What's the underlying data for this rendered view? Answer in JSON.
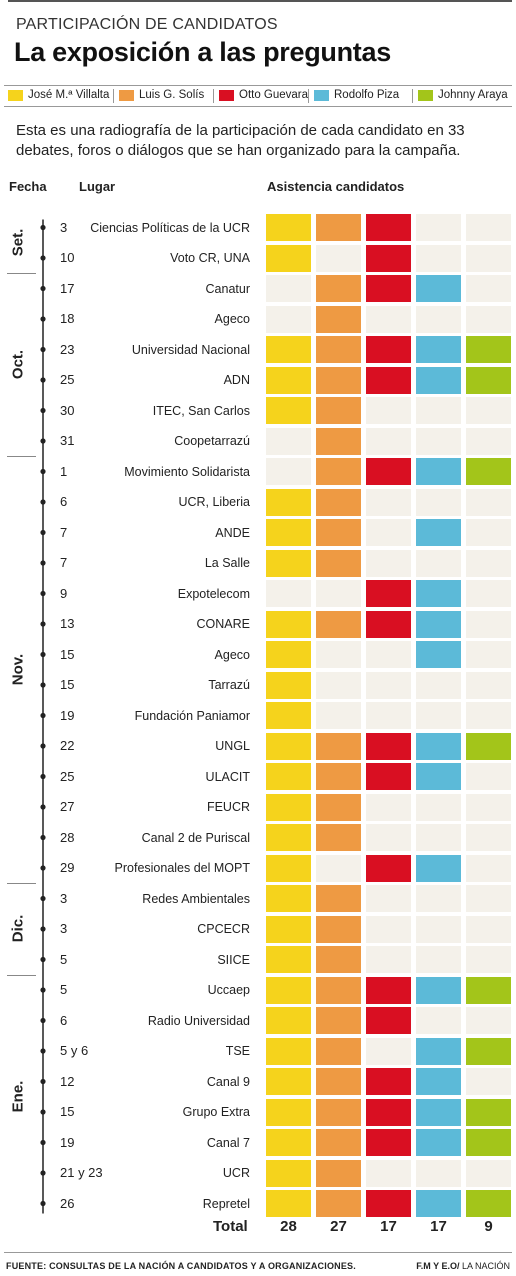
{
  "header": {
    "kicker": "PARTICIPACIÓN DE CANDIDATOS",
    "title": "La exposición a las preguntas"
  },
  "intro": "Esta es una radiografía de la participación de cada candidato en 33 debates, foros o diálogos que se han organizado para la campaña.",
  "columns": {
    "fecha": "Fecha",
    "lugar": "Lugar",
    "asistencia": "Asistencia candidatos"
  },
  "total_label": "Total",
  "footer": {
    "source_prefix": "FUENTE:",
    "source_text": "CONSULTAS DE LA NACIÓN A CANDIDATOS Y A ORGANIZACIONES.",
    "credit_bold": "F.M Y E.O/",
    "credit_rest": "LA NACIÓN"
  },
  "colors": {
    "empty": "#f4f1ea",
    "villalta": "#f5d31c",
    "solis": "#ee9a43",
    "guevara": "#d90f22",
    "piza": "#5cbad8",
    "araya": "#a3c51a"
  },
  "chart_data": {
    "type": "table",
    "title": "La exposición a las preguntas",
    "candidates": [
      {
        "name": "José M.ª Villalta",
        "color": "#f5d31c",
        "total": "28"
      },
      {
        "name": "Luis G. Solís",
        "color": "#ee9a43",
        "total": "27"
      },
      {
        "name": "Otto Guevara",
        "color": "#d90f22",
        "total": "17"
      },
      {
        "name": "Rodolfo Piza",
        "color": "#5cbad8",
        "total": "17"
      },
      {
        "name": "Johnny Araya",
        "color": "#a3c51a",
        "total": "9"
      }
    ],
    "months": [
      {
        "label": "Set.",
        "first_row": 0,
        "last_row": 1
      },
      {
        "label": "Oct.",
        "first_row": 2,
        "last_row": 7
      },
      {
        "label": "Nov.",
        "first_row": 8,
        "last_row": 21
      },
      {
        "label": "Dic.",
        "first_row": 22,
        "last_row": 24
      },
      {
        "label": "Ene.",
        "first_row": 25,
        "last_row": 32
      }
    ],
    "events": [
      {
        "day": "3",
        "place": "Ciencias Políticas de la UCR",
        "attendance": [
          1,
          1,
          1,
          0,
          0
        ]
      },
      {
        "day": "10",
        "place": "Voto CR, UNA",
        "attendance": [
          1,
          0,
          1,
          0,
          0
        ]
      },
      {
        "day": "17",
        "place": "Canatur",
        "attendance": [
          0,
          1,
          1,
          1,
          0
        ]
      },
      {
        "day": "18",
        "place": "Ageco",
        "attendance": [
          0,
          1,
          0,
          0,
          0
        ]
      },
      {
        "day": "23",
        "place": "Universidad Nacional",
        "attendance": [
          1,
          1,
          1,
          1,
          1
        ]
      },
      {
        "day": "25",
        "place": "ADN",
        "attendance": [
          1,
          1,
          1,
          1,
          1
        ]
      },
      {
        "day": "30",
        "place": "ITEC, San Carlos",
        "attendance": [
          1,
          1,
          0,
          0,
          0
        ]
      },
      {
        "day": "31",
        "place": "Coopetarrazú",
        "attendance": [
          0,
          1,
          0,
          0,
          0
        ]
      },
      {
        "day": "1",
        "place": "Movimiento Solidarista",
        "attendance": [
          0,
          1,
          1,
          1,
          1
        ]
      },
      {
        "day": "6",
        "place": "UCR, Liberia",
        "attendance": [
          1,
          1,
          0,
          0,
          0
        ]
      },
      {
        "day": "7",
        "place": "ANDE",
        "attendance": [
          1,
          1,
          0,
          1,
          0
        ]
      },
      {
        "day": "7",
        "place": "La Salle",
        "attendance": [
          1,
          1,
          0,
          0,
          0
        ]
      },
      {
        "day": "9",
        "place": "Expotelecom",
        "attendance": [
          0,
          0,
          1,
          1,
          0
        ]
      },
      {
        "day": "13",
        "place": "CONARE",
        "attendance": [
          1,
          1,
          1,
          1,
          0
        ]
      },
      {
        "day": "15",
        "place": "Ageco",
        "attendance": [
          1,
          0,
          0,
          1,
          0
        ]
      },
      {
        "day": "15",
        "place": "Tarrazú",
        "attendance": [
          1,
          0,
          0,
          0,
          0
        ]
      },
      {
        "day": "19",
        "place": "Fundación Paniamor",
        "attendance": [
          1,
          0,
          0,
          0,
          0
        ]
      },
      {
        "day": "22",
        "place": "UNGL",
        "attendance": [
          1,
          1,
          1,
          1,
          1
        ]
      },
      {
        "day": "25",
        "place": "ULACIT",
        "attendance": [
          1,
          1,
          1,
          1,
          0
        ]
      },
      {
        "day": "27",
        "place": "FEUCR",
        "attendance": [
          1,
          1,
          0,
          0,
          0
        ]
      },
      {
        "day": "28",
        "place": "Canal 2 de Puriscal",
        "attendance": [
          1,
          1,
          0,
          0,
          0
        ]
      },
      {
        "day": "29",
        "place": "Profesionales del MOPT",
        "attendance": [
          1,
          0,
          1,
          1,
          0
        ]
      },
      {
        "day": "3",
        "place": "Redes Ambientales",
        "attendance": [
          1,
          1,
          0,
          0,
          0
        ]
      },
      {
        "day": "3",
        "place": "CPCECR",
        "attendance": [
          1,
          1,
          0,
          0,
          0
        ]
      },
      {
        "day": "5",
        "place": "SIICE",
        "attendance": [
          1,
          1,
          0,
          0,
          0
        ]
      },
      {
        "day": "5",
        "place": "Uccaep",
        "attendance": [
          1,
          1,
          1,
          1,
          1
        ]
      },
      {
        "day": "6",
        "place": "Radio Universidad",
        "attendance": [
          1,
          1,
          1,
          0,
          0
        ]
      },
      {
        "day": "5 y 6",
        "place": "TSE",
        "attendance": [
          1,
          1,
          0,
          1,
          1
        ]
      },
      {
        "day": "12",
        "place": "Canal 9",
        "attendance": [
          1,
          1,
          1,
          1,
          0
        ]
      },
      {
        "day": "15",
        "place": "Grupo Extra",
        "attendance": [
          1,
          1,
          1,
          1,
          1
        ]
      },
      {
        "day": "19",
        "place": "Canal 7",
        "attendance": [
          1,
          1,
          1,
          1,
          1
        ]
      },
      {
        "day": "21 y 23",
        "place": "UCR",
        "attendance": [
          1,
          1,
          0,
          0,
          0
        ]
      },
      {
        "day": "26",
        "place": "Repretel",
        "attendance": [
          1,
          1,
          1,
          1,
          1
        ]
      }
    ]
  }
}
